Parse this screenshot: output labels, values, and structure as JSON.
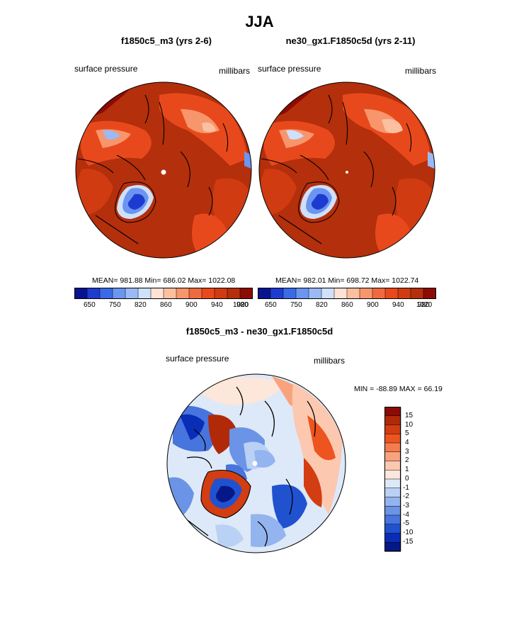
{
  "title": "JJA",
  "panels": [
    {
      "subtitle": "f1850c5_m3 (yrs 2-6)",
      "left_label": "surface pressure",
      "right_label": "millibars",
      "stats": "MEAN= 981.88  Min= 686.02  Max= 1022.08",
      "colorbar_ticks": [
        "650",
        "750",
        "820",
        "860",
        "900",
        "940",
        "980",
        "1020"
      ]
    },
    {
      "subtitle": "ne30_gx1.F1850c5d (yrs 2-11)",
      "left_label": "surface pressure",
      "right_label": "millibars",
      "stats": "MEAN= 982.01  Min= 698.72  Max= 1022.74",
      "colorbar_ticks": [
        "650",
        "750",
        "820",
        "860",
        "900",
        "940",
        "980",
        "1020"
      ]
    }
  ],
  "diff": {
    "subtitle": "f1850c5_m3 - ne30_gx1.F1850c5d",
    "left_label": "surface pressure",
    "right_label": "millibars",
    "minmax": "MIN = -88.89 MAX =  66.19",
    "colorbar_ticks": [
      "15",
      "10",
      "5",
      "4",
      "3",
      "2",
      "1",
      "0",
      "-1",
      "-2",
      "-3",
      "-4",
      "-5",
      "-10",
      "-15"
    ]
  },
  "colors": {
    "abs_scale": [
      "#08148f",
      "#1e3bd0",
      "#3b6ae6",
      "#6b95f0",
      "#9bbaf5",
      "#cfe0fa",
      "#ffe2d6",
      "#fcbf9f",
      "#f7966d",
      "#f06a3f",
      "#e8491c",
      "#d03b12",
      "#b42f0b",
      "#8c0b05"
    ],
    "diff_scale": [
      "#8c0b05",
      "#b02a0a",
      "#d23d12",
      "#ee5420",
      "#f47c4e",
      "#f9a37e",
      "#fcc8b0",
      "#fde6da",
      "#dde9f8",
      "#b9d1f4",
      "#93b4ee",
      "#6b93e6",
      "#4774dd",
      "#2052d0",
      "#0a2db8",
      "#061888"
    ]
  }
}
